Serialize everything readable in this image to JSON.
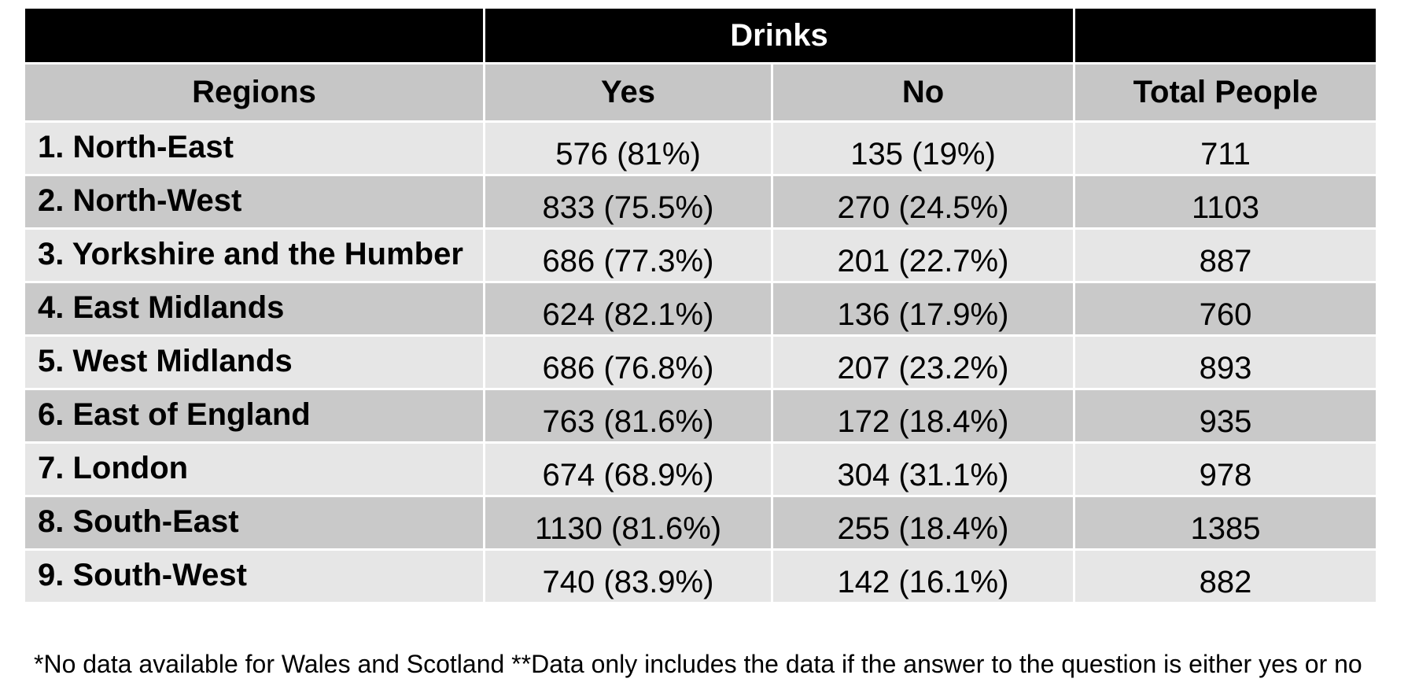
{
  "table": {
    "group_header": "Drinks",
    "columns": [
      "Regions",
      "Yes",
      "No",
      "Total People"
    ],
    "rows": [
      [
        "1. North-East",
        "576 (81%)",
        "135 (19%)",
        "711"
      ],
      [
        "2. North-West",
        "833 (75.5%)",
        "270 (24.5%)",
        "1103"
      ],
      [
        "3. Yorkshire and the Humber",
        "686 (77.3%)",
        "201 (22.7%)",
        "887"
      ],
      [
        "4. East Midlands",
        "624 (82.1%)",
        "136 (17.9%)",
        "760"
      ],
      [
        "5. West Midlands",
        "686 (76.8%)",
        "207 (23.2%)",
        "893"
      ],
      [
        "6. East of England",
        "763 (81.6%)",
        "172 (18.4%)",
        "935"
      ],
      [
        "7. London",
        "674 (68.9%)",
        "304 (31.1%)",
        "978"
      ],
      [
        "8. South-East",
        "1130 (81.6%)",
        "255 (18.4%)",
        "1385"
      ],
      [
        "9. South-West",
        "740 (83.9%)",
        "142 (16.1%)",
        "882"
      ]
    ]
  },
  "footnote": "*No data available for Wales and Scotland **Data only includes the data if the answer to the question is either yes or no",
  "colors": {
    "title_bar": "#000000",
    "header_row": "#c6c6c6",
    "row_light": "#e6e6e6",
    "row_dark": "#c9c9c9"
  }
}
